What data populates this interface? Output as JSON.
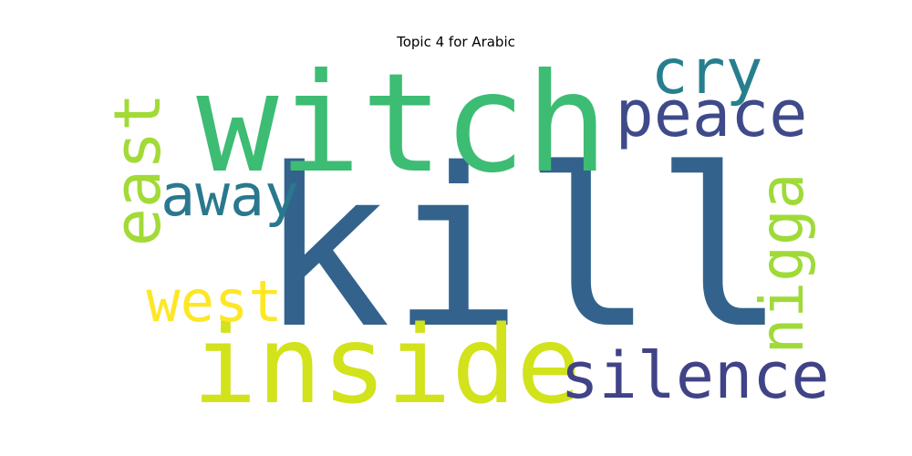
{
  "chart_data": {
    "type": "wordcloud",
    "title": "Topic 4 for Arabic",
    "words": [
      {
        "text": "kill",
        "weight": 1.0,
        "color": "#33638d",
        "orientation": "horizontal"
      },
      {
        "text": "witch",
        "weight": 0.64,
        "color": "#3dbc74",
        "orientation": "horizontal"
      },
      {
        "text": "inside",
        "weight": 0.5,
        "color": "#d2e21b",
        "orientation": "horizontal"
      },
      {
        "text": "silence",
        "weight": 0.3,
        "color": "#404387",
        "orientation": "horizontal"
      },
      {
        "text": "peace",
        "weight": 0.3,
        "color": "#3e4a89",
        "orientation": "horizontal"
      },
      {
        "text": "cry",
        "weight": 0.29,
        "color": "#277f8e",
        "orientation": "horizontal"
      },
      {
        "text": "east",
        "weight": 0.29,
        "color": "#a2da37",
        "orientation": "vertical"
      },
      {
        "text": "nigga",
        "weight": 0.27,
        "color": "#a0da39",
        "orientation": "vertical"
      },
      {
        "text": "away",
        "weight": 0.26,
        "color": "#2a788e",
        "orientation": "horizontal"
      },
      {
        "text": "west",
        "weight": 0.26,
        "color": "#fde725",
        "orientation": "horizontal"
      }
    ]
  }
}
